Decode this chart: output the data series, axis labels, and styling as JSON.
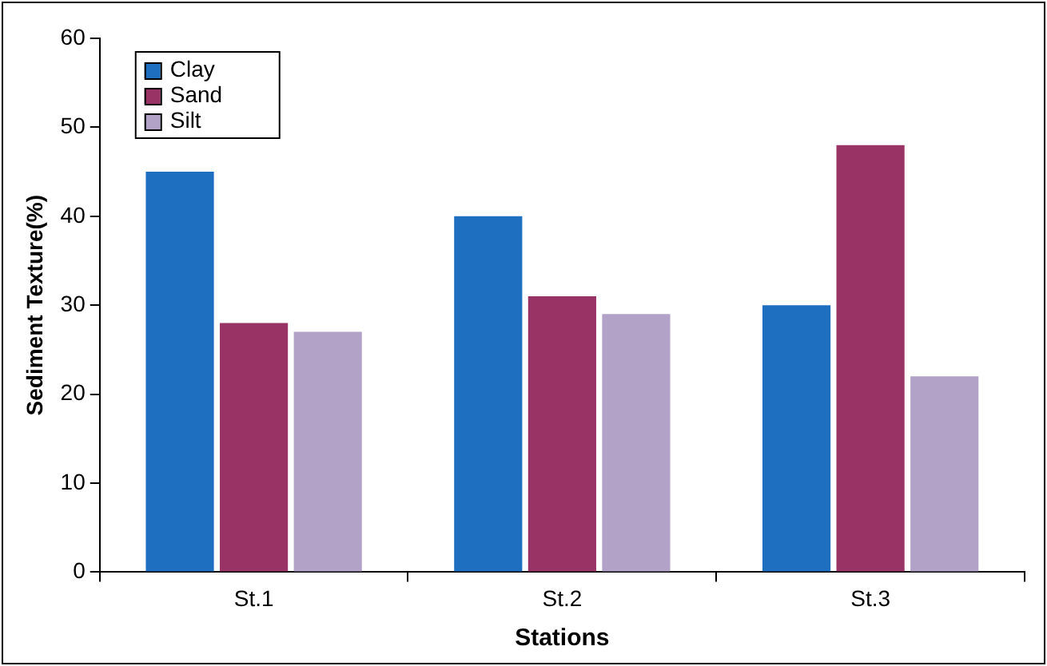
{
  "chart_data": {
    "type": "bar",
    "xlabel": "Stations",
    "ylabel": "Sediment Texture(%)",
    "categories": [
      "St.1",
      "St.2",
      "St.3"
    ],
    "series": [
      {
        "name": "Clay",
        "color": "#1f6fc0",
        "values": [
          45,
          40,
          30
        ]
      },
      {
        "name": "Sand",
        "color": "#993366",
        "values": [
          28,
          31,
          48
        ]
      },
      {
        "name": "Silt",
        "color": "#b3a2c7",
        "values": [
          27,
          29,
          22
        ]
      }
    ],
    "ylim": [
      0,
      60
    ],
    "yticks": [
      0,
      10,
      20,
      30,
      40,
      50,
      60
    ],
    "grid": false,
    "legend": "top left"
  }
}
